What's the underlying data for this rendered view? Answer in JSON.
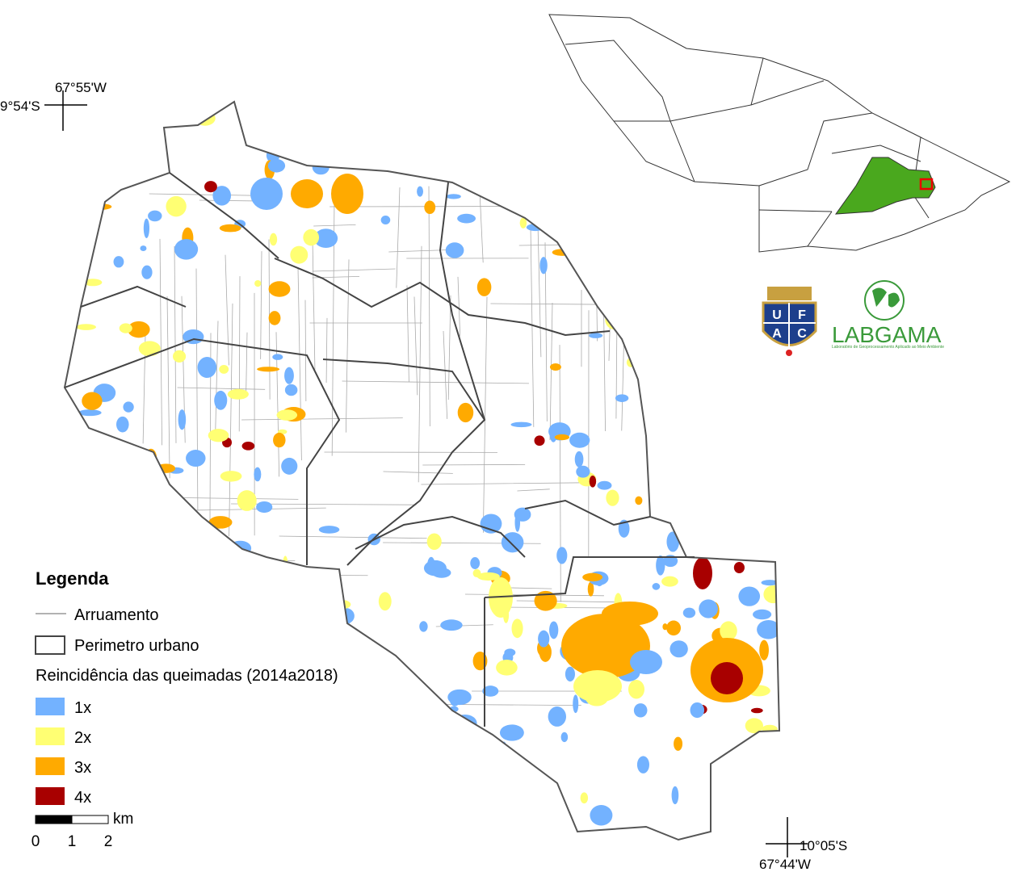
{
  "map": {
    "coords": {
      "top_left_lon": "67°55'W",
      "top_left_lat": "9°54'S",
      "bottom_right_lat": "10°05'S",
      "bottom_right_lon": "67°44'W"
    },
    "legend": {
      "title": "Legenda",
      "streets": "Arruamento",
      "perimeter": "Perimetro urbano",
      "burn_title": "Reincidência das queimadas (2014a2018)",
      "classes": [
        {
          "label": "1x",
          "color": "#73b2ff"
        },
        {
          "label": "2x",
          "color": "#ffff73"
        },
        {
          "label": "3x",
          "color": "#ffaa00"
        },
        {
          "label": "4x",
          "color": "#a80000"
        }
      ]
    },
    "scale": {
      "unit": "km",
      "labels": [
        "0",
        "1",
        "2"
      ]
    },
    "logos": {
      "ufac": [
        "U",
        "F",
        "A",
        "C"
      ],
      "labgama": "LABGAMA",
      "labgama_sub": "Laboratório de Geoprocessamento Aplicado ao Meio Ambiente"
    }
  }
}
